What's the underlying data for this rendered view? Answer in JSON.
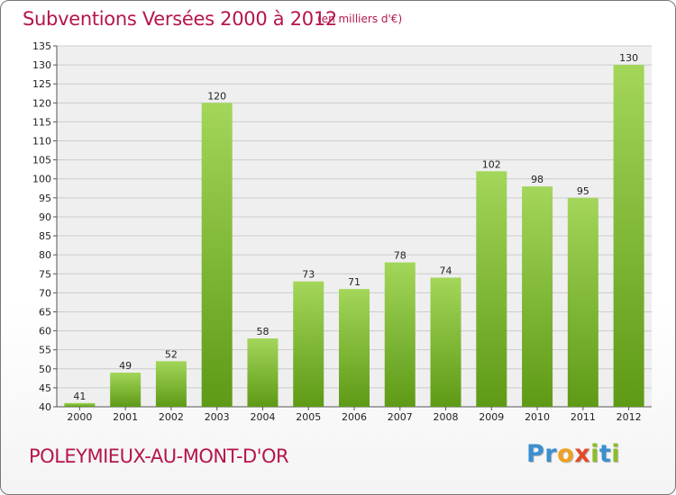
{
  "header": {
    "title": "Subventions Versées 2000 à 2012",
    "subtitle": "(en milliers d'€)"
  },
  "footer": {
    "town": "POLEYMIEUX-AU-MONT-D'OR",
    "logo": {
      "text": "Proxiti",
      "letters": [
        {
          "char": "P",
          "color": "#3a8fd0"
        },
        {
          "char": "r",
          "color": "#3a8fd0"
        },
        {
          "char": "o",
          "color": "#f0a020"
        },
        {
          "char": "x",
          "color": "#e24b2a"
        },
        {
          "char": "i",
          "color": "#8cbd2c"
        },
        {
          "char": "t",
          "color": "#3a8fd0"
        },
        {
          "char": "i",
          "color": "#8cbd2c"
        }
      ]
    }
  },
  "colors": {
    "bar_light": "#a3d65a",
    "bar_dark": "#5e9a16",
    "title": "#b5154b",
    "plot_bg": "#efefef",
    "grid": "#cccccc"
  },
  "chart_data": {
    "type": "bar",
    "title": "Subventions Versées 2000 à 2012",
    "subtitle": "(en milliers d'€)",
    "categories": [
      "2000",
      "2001",
      "2002",
      "2003",
      "2004",
      "2005",
      "2006",
      "2007",
      "2008",
      "2009",
      "2010",
      "2011",
      "2012"
    ],
    "values": [
      41,
      49,
      52,
      120,
      58,
      73,
      71,
      78,
      74,
      102,
      98,
      95,
      130
    ],
    "ylim": [
      40,
      135
    ],
    "yticks": [
      40,
      45,
      50,
      55,
      60,
      65,
      70,
      75,
      80,
      85,
      90,
      95,
      100,
      105,
      110,
      115,
      120,
      125,
      130,
      135
    ],
    "grid": true,
    "data_labels": true
  }
}
